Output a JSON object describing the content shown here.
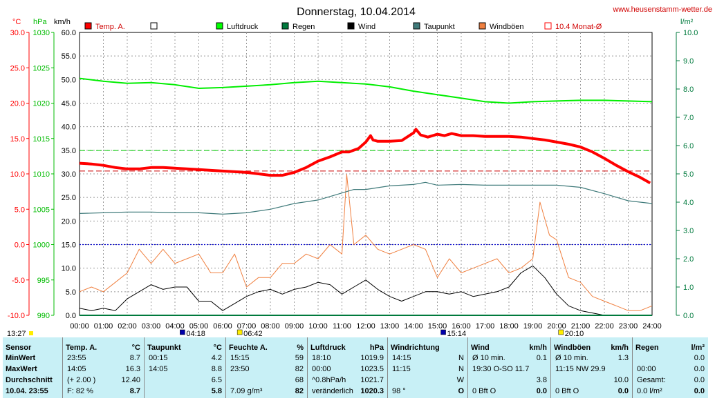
{
  "header": {
    "title": "Donnerstag, 10.04.2014",
    "site": "www.heusenstamm-wetter.de"
  },
  "units": {
    "temp": "°C",
    "pressure": "hPa",
    "speed": "km/h",
    "rain": "l/m²"
  },
  "legend": [
    {
      "label": "Temp. A.",
      "color": "#ff0000",
      "filled": true
    },
    {
      "label": "",
      "color": "#000000",
      "filled": false
    },
    {
      "label": "Luftdruck",
      "color": "#00ff00",
      "filled": true
    },
    {
      "label": "Regen",
      "color": "#007a3d",
      "filled": true
    },
    {
      "label": "Wind",
      "color": "#000000",
      "filled": true
    },
    {
      "label": "Taupunkt",
      "color": "#3f7a7a",
      "filled": true
    },
    {
      "label": "Windböen",
      "color": "#f08040",
      "filled": true
    },
    {
      "label": "10.4 Monat-Ø",
      "color": "#ff0000",
      "filled": false
    }
  ],
  "axis_labels": {
    "temp": [
      "30.0",
      "25.0",
      "20.0",
      "15.0",
      "10.0",
      "5.0",
      "0.0",
      "-5.0",
      "-10.0"
    ],
    "pressure": [
      "1030",
      "1025",
      "1020",
      "1015",
      "1010",
      "1005",
      "1000",
      "995",
      "990"
    ],
    "speed": [
      "60.0",
      "55.0",
      "50.0",
      "45.0",
      "40.0",
      "35.0",
      "30.0",
      "25.0",
      "20.0",
      "15.0",
      "10.0",
      "5.0",
      "0.0"
    ],
    "rain": [
      "10.0",
      "9.0",
      "8.0",
      "7.0",
      "6.0",
      "5.0",
      "4.0",
      "3.0",
      "2.0",
      "1.0",
      "0.0"
    ],
    "time": [
      "00:00",
      "01:00",
      "02:00",
      "03:00",
      "04:00",
      "05:00",
      "06:00",
      "07:00",
      "08:00",
      "09:00",
      "10:00",
      "11:00",
      "12:00",
      "13:00",
      "14:00",
      "15:00",
      "16:00",
      "17:00",
      "18:00",
      "19:00",
      "20:00",
      "21:00",
      "22:00",
      "23:00",
      "24:00"
    ]
  },
  "time_markers": {
    "left_time": "13:27",
    "moon_rise": "04:18",
    "sunrise": "06:42",
    "moon_set": "15:14",
    "sunset": "20:10"
  },
  "chart_data": {
    "type": "line",
    "x_unit": "hours",
    "xlim": [
      0,
      24
    ],
    "temp_axis_lim": [
      -10,
      30
    ],
    "speed_axis_lim": [
      0,
      60
    ],
    "reference_lines": {
      "temp_month_avg": 10.4,
      "temp_dashed_green": 13.3,
      "zero_temp": 0.0
    },
    "series": [
      {
        "name": "Temp. A.",
        "unit": "°C",
        "color": "#ff0000",
        "x": [
          0,
          0.5,
          1,
          1.5,
          2,
          2.5,
          3,
          3.5,
          4,
          4.5,
          5,
          5.5,
          6,
          6.5,
          7,
          7.5,
          8,
          8.5,
          9,
          9.5,
          10,
          10.5,
          11,
          11.3,
          11.7,
          12,
          12.2,
          12.3,
          12.5,
          13,
          13.5,
          14,
          14.1,
          14.3,
          14.6,
          15,
          15.3,
          15.6,
          16,
          16.5,
          17,
          17.5,
          18,
          18.5,
          19,
          19.5,
          20,
          20.5,
          21,
          21.5,
          22,
          22.5,
          23,
          23.5,
          23.92
        ],
        "values": [
          11.5,
          11.4,
          11.2,
          10.9,
          10.7,
          10.7,
          10.9,
          10.9,
          10.8,
          10.7,
          10.6,
          10.5,
          10.4,
          10.3,
          10.2,
          10.0,
          9.8,
          9.8,
          10.2,
          10.9,
          11.8,
          12.4,
          13.1,
          13.1,
          13.6,
          14.5,
          15.4,
          14.8,
          14.6,
          14.6,
          14.7,
          15.8,
          16.3,
          15.5,
          15.2,
          15.6,
          15.4,
          15.7,
          15.4,
          15.4,
          15.3,
          15.3,
          15.3,
          15.2,
          15.0,
          14.8,
          14.5,
          14.2,
          13.8,
          13.1,
          12.2,
          11.2,
          10.3,
          9.5,
          8.7
        ]
      },
      {
        "name": "Taupunkt",
        "unit": "°C",
        "color": "#3f7a7a",
        "x": [
          0,
          1,
          2,
          3,
          4,
          5,
          6,
          7,
          8,
          9,
          10,
          11,
          11.5,
          12,
          13,
          14,
          14.5,
          15,
          16,
          17,
          18,
          19,
          20,
          21,
          22,
          23,
          24
        ],
        "values": [
          4.4,
          4.5,
          4.6,
          4.6,
          4.5,
          4.5,
          4.3,
          4.5,
          5.0,
          5.8,
          6.3,
          7.3,
          7.8,
          7.8,
          8.3,
          8.5,
          8.8,
          8.4,
          8.5,
          8.4,
          8.4,
          8.4,
          8.4,
          8.1,
          7.2,
          6.2,
          5.8
        ]
      },
      {
        "name": "Luftdruck",
        "unit": "hPa",
        "color": "#00ee00",
        "x": [
          0,
          1,
          2,
          3,
          4,
          5,
          6,
          7,
          8,
          9,
          10,
          11,
          12,
          13,
          14,
          15,
          16,
          17,
          18,
          19,
          20,
          21,
          22,
          23,
          24
        ],
        "values": [
          1023.5,
          1023.1,
          1022.8,
          1022.9,
          1022.6,
          1022.1,
          1022.2,
          1022.4,
          1022.6,
          1022.9,
          1023.1,
          1022.9,
          1022.7,
          1022.3,
          1021.7,
          1021.2,
          1020.7,
          1020.2,
          1020.0,
          1020.2,
          1020.3,
          1020.4,
          1020.4,
          1020.3,
          1020.2
        ]
      },
      {
        "name": "Wind",
        "unit": "km/h",
        "color": "#000000",
        "x": [
          0,
          0.5,
          1,
          1.5,
          2,
          2.5,
          3,
          3.5,
          4,
          4.5,
          5,
          5.5,
          6,
          6.5,
          7,
          7.5,
          8,
          8.5,
          9,
          9.5,
          10,
          10.5,
          11,
          11.5,
          12,
          12.5,
          13,
          13.5,
          14,
          14.5,
          15,
          15.5,
          16,
          16.5,
          17,
          17.5,
          18,
          18.5,
          19,
          19.5,
          20,
          20.5,
          21,
          21.5,
          22
        ],
        "values": [
          1.5,
          1,
          1.5,
          1,
          3.5,
          5,
          6.5,
          5.5,
          6,
          6,
          3,
          3,
          1,
          2.5,
          4,
          5,
          5.5,
          4.5,
          5.5,
          6,
          7,
          6.5,
          4.5,
          6,
          7.5,
          5.5,
          4,
          3,
          4,
          5,
          5,
          4.5,
          5,
          4,
          4.5,
          5,
          6,
          9,
          10.5,
          8,
          4.5,
          2,
          1,
          0.5,
          0
        ]
      },
      {
        "name": "Windböen",
        "unit": "km/h",
        "color": "#f08040",
        "x": [
          0,
          0.5,
          1,
          1.5,
          2,
          2.5,
          3,
          3.5,
          4,
          4.5,
          5,
          5.5,
          6,
          6.5,
          7,
          7.5,
          8,
          8.5,
          9,
          9.5,
          10,
          10.5,
          11,
          11.2,
          11.5,
          12,
          12.5,
          13,
          13.5,
          14,
          14.5,
          15,
          15.5,
          16,
          16.5,
          17,
          17.5,
          18,
          18.5,
          19,
          19.3,
          19.7,
          20,
          20.5,
          21,
          21.5,
          22,
          22.5,
          23,
          23.5,
          24
        ],
        "values": [
          5,
          6,
          5,
          7,
          9,
          14,
          11,
          14,
          11,
          12,
          13,
          9,
          9,
          13,
          6,
          8,
          8,
          11,
          11,
          13,
          12,
          15,
          13,
          29.9,
          15,
          17,
          14,
          13,
          14,
          15,
          14,
          8,
          12,
          9,
          10,
          11,
          12,
          9,
          10,
          12,
          24,
          17,
          16,
          8,
          7,
          4,
          3,
          2,
          1,
          1,
          2
        ]
      }
    ]
  },
  "table": {
    "columns": [
      {
        "title": "Sensor",
        "unit": "",
        "rows": [
          {
            "label": "MinWert",
            "c1": "",
            "c2": ""
          },
          {
            "label": "MaxWert",
            "c1": "",
            "c2": ""
          },
          {
            "label": "Durchschnitt",
            "c1": "",
            "c2": ""
          },
          {
            "label": "10.04.  23:55",
            "c1": "",
            "c2": ""
          }
        ]
      },
      {
        "title": "Temp. A.",
        "unit": "°C",
        "rows": [
          {
            "a": "23:55",
            "b": "8.7"
          },
          {
            "a": "14:05",
            "b": "16.3"
          },
          {
            "a": "(+ 2.00 )",
            "b": "12.40"
          },
          {
            "a": "F: 82 %",
            "b": "8.7"
          }
        ]
      },
      {
        "title": "Taupunkt",
        "unit": "°C",
        "rows": [
          {
            "a": "00:15",
            "b": "4.2"
          },
          {
            "a": "14:05",
            "b": "8.8"
          },
          {
            "a": "",
            "b": "6.5"
          },
          {
            "a": "",
            "b": "5.8"
          }
        ]
      },
      {
        "title": "Feuchte A.",
        "unit": "%",
        "rows": [
          {
            "a": "15:15",
            "b": "59"
          },
          {
            "a": "23:50",
            "b": "82"
          },
          {
            "a": "",
            "b": "68"
          },
          {
            "a": "7.09 g/m³",
            "b": "82"
          }
        ]
      },
      {
        "title": "Luftdruck",
        "unit": "hPa",
        "rows": [
          {
            "a": "18:10",
            "b": "1019.9"
          },
          {
            "a": "00:00",
            "b": "1023.5"
          },
          {
            "a": "^0.8hPa/h",
            "b": "1021.7"
          },
          {
            "a": "veränderlich",
            "b": "1020.3"
          }
        ]
      },
      {
        "title": "Windrichtung",
        "unit": "",
        "rows": [
          {
            "a": "14:15",
            "b": "N"
          },
          {
            "a": "11:15",
            "b": "N"
          },
          {
            "a": "",
            "b": "W"
          },
          {
            "a": "98 °",
            "b": "O"
          }
        ]
      },
      {
        "title": "Wind",
        "unit": "km/h",
        "rows": [
          {
            "a": "Ø 10 min.",
            "b": "0.1"
          },
          {
            "a": "19:30     O-SO 11.7",
            "b": ""
          },
          {
            "a": "",
            "b": "3.8"
          },
          {
            "a": "0 Bft O",
            "b": "0.0"
          }
        ]
      },
      {
        "title": "Windböen",
        "unit": "km/h",
        "rows": [
          {
            "a": "Ø 10 min.",
            "b": "1.3"
          },
          {
            "a": "11:15     NW 29.9",
            "b": ""
          },
          {
            "a": "",
            "b": "10.0"
          },
          {
            "a": "0 Bft O",
            "b": "0.0"
          }
        ]
      },
      {
        "title": "Regen",
        "unit": "l/m²",
        "rows": [
          {
            "a": "",
            "b": "0.0"
          },
          {
            "a": "00:00",
            "b": "0.0"
          },
          {
            "a": "Gesamt:",
            "b": "0.0"
          },
          {
            "a": "0.0 l/m²",
            "b": "0.0"
          }
        ]
      }
    ]
  }
}
